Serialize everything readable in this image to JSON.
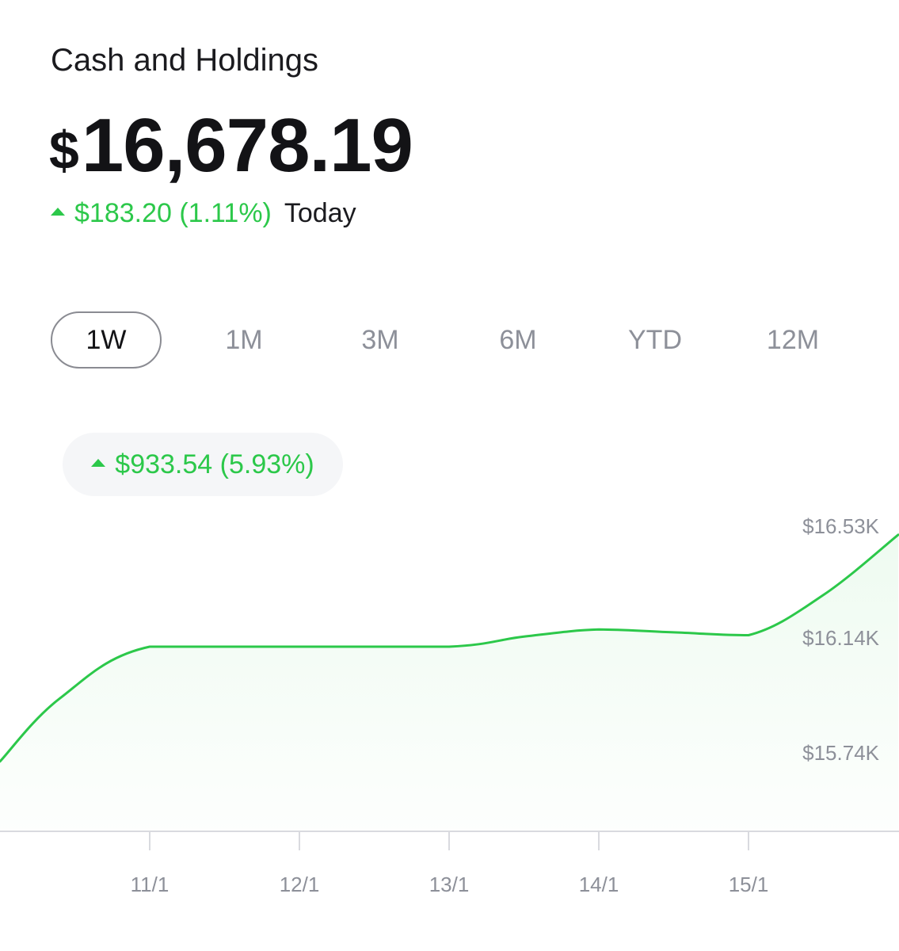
{
  "header": {
    "title": "Cash and Holdings",
    "currency_symbol": "$",
    "balance": "16,678.19",
    "change_today": "$183.20 (1.11%)",
    "change_today_label": "Today"
  },
  "ranges": [
    {
      "label": "1W",
      "active": true
    },
    {
      "label": "1M",
      "active": false
    },
    {
      "label": "3M",
      "active": false
    },
    {
      "label": "6M",
      "active": false
    },
    {
      "label": "YTD",
      "active": false
    },
    {
      "label": "12M",
      "active": false
    }
  ],
  "period_change": "$933.54 (5.93%)",
  "colors": {
    "accent_green": "#2cc84a",
    "axis_text": "#8d9099"
  },
  "chart_data": {
    "type": "area",
    "title": "",
    "xlabel": "",
    "ylabel": "",
    "x_ticks": [
      "11/1",
      "12/1",
      "13/1",
      "14/1",
      "15/1"
    ],
    "y_ticks": [
      {
        "value": 16530,
        "label": "$16.53K"
      },
      {
        "value": 16140,
        "label": "$16.14K"
      },
      {
        "value": 15740,
        "label": "$15.74K"
      }
    ],
    "series": [
      {
        "points": [
          {
            "x": 10.0,
            "y": 15740
          },
          {
            "x": 10.4,
            "y": 15960
          },
          {
            "x": 11.0,
            "y": 16140
          },
          {
            "x": 12.0,
            "y": 16140
          },
          {
            "x": 13.0,
            "y": 16140
          },
          {
            "x": 13.5,
            "y": 16175
          },
          {
            "x": 14.0,
            "y": 16200
          },
          {
            "x": 14.5,
            "y": 16190
          },
          {
            "x": 15.0,
            "y": 16180
          },
          {
            "x": 15.5,
            "y": 16320
          },
          {
            "x": 16.0,
            "y": 16530
          }
        ]
      }
    ],
    "grid": false,
    "y_axis_position": "right"
  }
}
